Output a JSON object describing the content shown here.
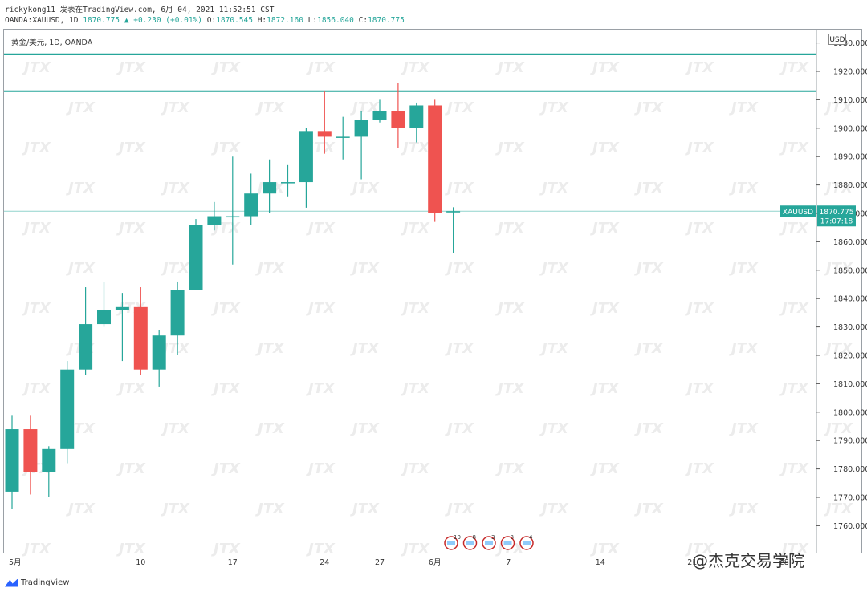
{
  "header": {
    "line1_prefix": "rickykong11 发表在TradingView.com, 6月 04, 2021 11:52:51 CST",
    "line2": {
      "symbol": "OANDA:XAUUSD, 1D",
      "last": "1870.775",
      "change": "+0.230 (+0.01%)",
      "open_label": "O:",
      "open": "1870.545",
      "high_label": "H:",
      "high": "1872.160",
      "low_label": "L:",
      "low": "1856.040",
      "close_label": "C:",
      "close": "1870.775"
    }
  },
  "legend": {
    "title": "黄金/美元, 1D, OANDA"
  },
  "price_axis": {
    "currency": "USD"
  },
  "price_tag": {
    "symbol": "XAUUSD",
    "price": "1870.775",
    "countdown": "17:07:18"
  },
  "footer": {
    "brand": "TradingView",
    "watermark": "@杰克交易学院"
  },
  "events": [
    "10",
    "8",
    "3",
    "8",
    "4"
  ],
  "colors": {
    "up": "#26a69a",
    "down": "#ef5350",
    "hline": "#26a69a"
  },
  "chart_data": {
    "type": "candlestick",
    "title": "黄金/美元, 1D, OANDA",
    "ylim": [
      1754,
      1936
    ],
    "yticks": [
      1760,
      1770,
      1780,
      1790,
      1800,
      1810,
      1820,
      1830,
      1840,
      1850,
      1860,
      1870,
      1880,
      1890,
      1900,
      1910,
      1920,
      1930
    ],
    "ytick_labels": [
      "1760.000",
      "1770.000",
      "1780.000",
      "1790.000",
      "1800.000",
      "1810.000",
      "1820.000",
      "1830.000",
      "1840.000",
      "1850.000",
      "1860.000",
      "1870.000",
      "1880.000",
      "1890.000",
      "1900.000",
      "1910.000",
      "1920.000",
      "1930.000"
    ],
    "xticks": [
      {
        "i": 0,
        "label": "5月"
      },
      {
        "i": 7,
        "label": "10"
      },
      {
        "i": 12,
        "label": "17"
      },
      {
        "i": 17,
        "label": "24"
      },
      {
        "i": 20,
        "label": "27"
      },
      {
        "i": 23,
        "label": "6月"
      },
      {
        "i": 27,
        "label": "7"
      },
      {
        "i": 32,
        "label": "14"
      },
      {
        "i": 37,
        "label": "21"
      },
      {
        "i": 42,
        "label": "28"
      }
    ],
    "candles": [
      {
        "o": 1772,
        "h": 1799,
        "l": 1766,
        "c": 1794
      },
      {
        "o": 1794,
        "h": 1799,
        "l": 1771,
        "c": 1779
      },
      {
        "o": 1779,
        "h": 1788,
        "l": 1770,
        "c": 1787
      },
      {
        "o": 1787,
        "h": 1818,
        "l": 1782,
        "c": 1815
      },
      {
        "o": 1815,
        "h": 1844,
        "l": 1813,
        "c": 1831
      },
      {
        "o": 1831,
        "h": 1846,
        "l": 1830,
        "c": 1836
      },
      {
        "o": 1836,
        "h": 1842,
        "l": 1818,
        "c": 1837
      },
      {
        "o": 1837,
        "h": 1844,
        "l": 1813,
        "c": 1815
      },
      {
        "o": 1815,
        "h": 1829,
        "l": 1809,
        "c": 1827
      },
      {
        "o": 1827,
        "h": 1846,
        "l": 1820,
        "c": 1843
      },
      {
        "o": 1843,
        "h": 1868,
        "l": 1843,
        "c": 1866
      },
      {
        "o": 1866,
        "h": 1874,
        "l": 1864,
        "c": 1869
      },
      {
        "o": 1869,
        "h": 1890,
        "l": 1852,
        "c": 1869
      },
      {
        "o": 1869,
        "h": 1884,
        "l": 1866,
        "c": 1877
      },
      {
        "o": 1877,
        "h": 1889,
        "l": 1870,
        "c": 1881
      },
      {
        "o": 1881,
        "h": 1887,
        "l": 1876,
        "c": 1881
      },
      {
        "o": 1881,
        "h": 1900,
        "l": 1872,
        "c": 1899
      },
      {
        "o": 1899,
        "h": 1913,
        "l": 1891,
        "c": 1897
      },
      {
        "o": 1897,
        "h": 1904,
        "l": 1889,
        "c": 1897
      },
      {
        "o": 1897,
        "h": 1906,
        "l": 1882,
        "c": 1903
      },
      {
        "o": 1903,
        "h": 1910,
        "l": 1902,
        "c": 1906
      },
      {
        "o": 1906,
        "h": 1916,
        "l": 1893,
        "c": 1900
      },
      {
        "o": 1900,
        "h": 1909,
        "l": 1895,
        "c": 1908
      },
      {
        "o": 1908,
        "h": 1910,
        "l": 1867,
        "c": 1870
      },
      {
        "o": 1870.545,
        "h": 1872.16,
        "l": 1856.04,
        "c": 1870.775
      }
    ],
    "horizontal_lines": [
      1926,
      1913
    ],
    "last_price": 1870.775
  }
}
